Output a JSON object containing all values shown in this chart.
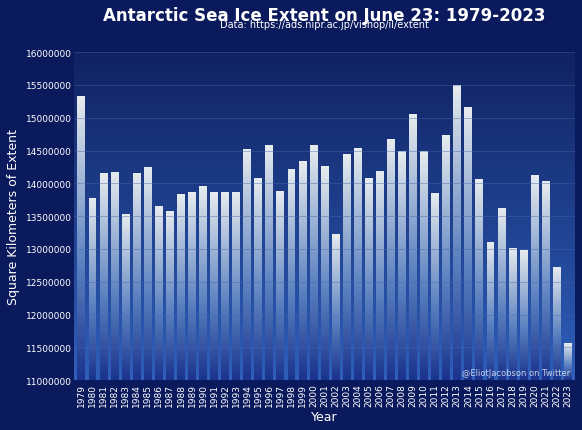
{
  "title": "Antarctic Sea Ice Extent on June 23: 1979-2023",
  "subtitle": "Data: https://ads.nipr.ac.jp/vishop/il/extent",
  "xlabel": "Year",
  "ylabel": "Square Kilometers of Extent",
  "watermark": "@EliotJacobson on Twitter",
  "bg_top_color": "#0a1a5c",
  "bg_bottom_color": "#1a4a9c",
  "bar_top_color": "#dce8f8",
  "bar_mid_color": "#7090c8",
  "bar_bot_color": "#2a4a9c",
  "text_color": "white",
  "grid_color": "#4466aa",
  "ylim_min": 11000000,
  "ylim_max": 16000000,
  "yticks": [
    11000000,
    11500000,
    12000000,
    12500000,
    13000000,
    13500000,
    14000000,
    14500000,
    15000000,
    15500000,
    16000000
  ],
  "years": [
    1979,
    1980,
    1981,
    1982,
    1983,
    1984,
    1985,
    1986,
    1987,
    1988,
    1989,
    1990,
    1991,
    1992,
    1993,
    1994,
    1995,
    1996,
    1997,
    1998,
    1999,
    2000,
    2001,
    2002,
    2003,
    2004,
    2005,
    2006,
    2007,
    2008,
    2009,
    2010,
    2011,
    2012,
    2013,
    2014,
    2015,
    2016,
    2017,
    2018,
    2019,
    2020,
    2021,
    2022,
    2023
  ],
  "values": [
    15330000,
    13780000,
    14150000,
    14180000,
    13540000,
    14160000,
    14250000,
    13650000,
    13580000,
    13840000,
    13870000,
    13960000,
    13870000,
    13870000,
    13870000,
    14530000,
    14080000,
    14580000,
    13890000,
    14220000,
    14340000,
    14580000,
    14260000,
    13230000,
    14440000,
    14540000,
    14080000,
    14190000,
    14680000,
    14490000,
    15060000,
    14490000,
    13850000,
    14730000,
    15500000,
    15170000,
    14060000,
    13100000,
    13630000,
    13020000,
    12980000,
    14120000,
    14030000,
    12720000,
    11560000
  ],
  "title_fontsize": 12,
  "subtitle_fontsize": 7,
  "axis_label_fontsize": 9,
  "tick_fontsize": 6.5,
  "watermark_fontsize": 6,
  "bar_width": 0.72
}
